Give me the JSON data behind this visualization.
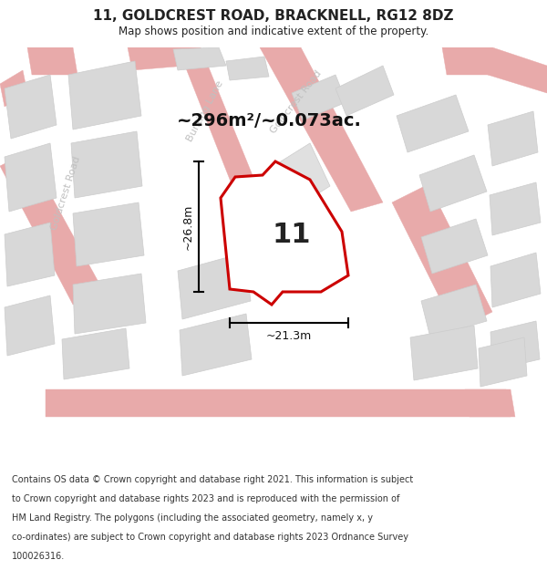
{
  "title": "11, GOLDCREST ROAD, BRACKNELL, RG12 8DZ",
  "subtitle": "Map shows position and indicative extent of the property.",
  "area_text": "~296m²/~0.073ac.",
  "dim_width": "~21.3m",
  "dim_height": "~26.8m",
  "plot_number": "11",
  "footer_lines": [
    "Contains OS data © Crown copyright and database right 2021. This information is subject",
    "to Crown copyright and database rights 2023 and is reproduced with the permission of",
    "HM Land Registry. The polygons (including the associated geometry, namely x, y",
    "co-ordinates) are subject to Crown copyright and database rights 2023 Ordnance Survey",
    "100026316."
  ],
  "bg_color": "#f0f0f0",
  "highlight_color": "#cc0000",
  "highlight_fill": "#ffffff",
  "road_color": "#e8aaaa",
  "road_fill": "#f0f0f0",
  "building_color": "#cccccc",
  "building_fill": "#d8d8d8",
  "street_label_color": "#c0c0c0",
  "title_color": "#222222",
  "footer_color": "#333333",
  "title_fontsize": 11,
  "subtitle_fontsize": 8.5,
  "area_fontsize": 14,
  "plot_label_fontsize": 22,
  "dim_fontsize": 9,
  "street_fontsize": 8
}
